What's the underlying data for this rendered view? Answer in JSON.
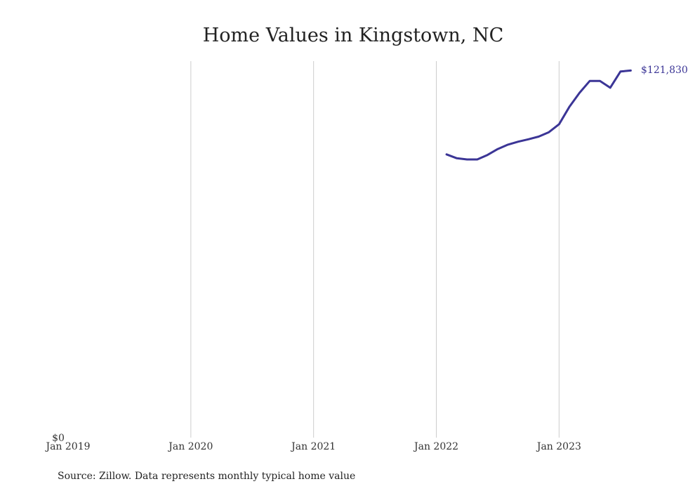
{
  "chart_data": {
    "type": "line",
    "title": "Home Values in Kingstown, NC",
    "xlabel": "",
    "ylabel": "",
    "x_ticks": [
      "Jan 2019",
      "Jan 2020",
      "Jan 2021",
      "Jan 2022",
      "Jan 2023"
    ],
    "y_ticks": [
      "$0"
    ],
    "xlim": [
      "2019-01",
      "2023-08"
    ],
    "ylim": [
      0,
      125000
    ],
    "grid": "vertical at x ticks",
    "legend": "none",
    "line_color": "#3b3596",
    "end_label": "$121,830",
    "series": [
      {
        "x": [
          "2022-02",
          "2022-03",
          "2022-04",
          "2022-05",
          "2022-06",
          "2022-07",
          "2022-08",
          "2022-09",
          "2022-10",
          "2022-11",
          "2022-12",
          "2023-01",
          "2023-02",
          "2023-03",
          "2023-04",
          "2023-05",
          "2023-06",
          "2023-07",
          "2023-08"
        ],
        "y": [
          93500,
          92200,
          91800,
          91800,
          93300,
          95300,
          96800,
          97800,
          98600,
          99500,
          101000,
          103700,
          109500,
          114300,
          118300,
          118300,
          116000,
          121500,
          121830
        ]
      }
    ]
  },
  "source": "Source: Zillow. Data represents monthly typical home value"
}
